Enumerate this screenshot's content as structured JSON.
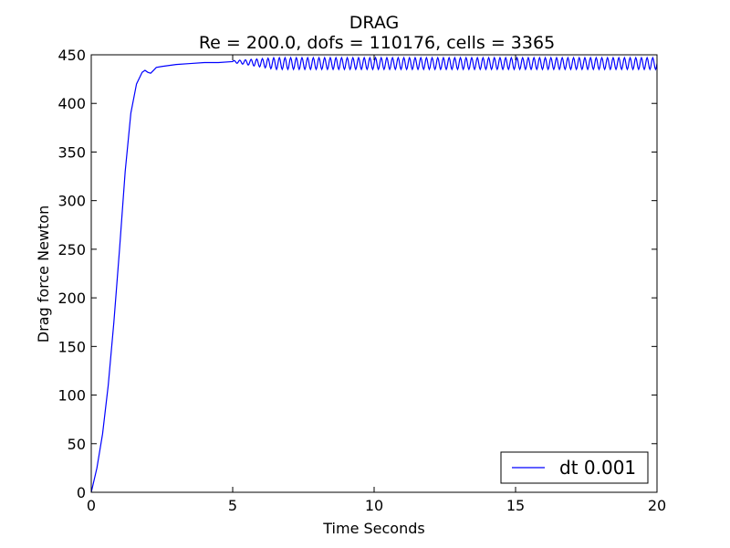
{
  "chart_data": {
    "type": "line",
    "title": "DRAG",
    "subtitle": "Re = 200.0, dofs = 110176, cells = 3365",
    "xlabel": "Time Seconds",
    "ylabel": "Drag force Newton",
    "xlim": [
      0,
      20
    ],
    "ylim": [
      0,
      450
    ],
    "xticks": [
      0,
      5,
      10,
      15,
      20
    ],
    "yticks": [
      0,
      50,
      100,
      150,
      200,
      250,
      300,
      350,
      400,
      450
    ],
    "grid": false,
    "legend_position": "lower-right",
    "series": [
      {
        "name": "dt  0.001",
        "color": "#0000ff",
        "description": "rapid rise to ~433 N by t~1.9 s, small dip, settles near 441-443 N, then periodic oscillation between ~435 and ~447 N from t~5.5 s to 20 s",
        "x": [
          0,
          0.2,
          0.4,
          0.6,
          0.8,
          1.0,
          1.2,
          1.4,
          1.6,
          1.8,
          1.9,
          2.0,
          2.1,
          2.2,
          2.3,
          2.5,
          3.0,
          3.5,
          4.0,
          4.5,
          5.0
        ],
        "y": [
          0,
          25,
          60,
          110,
          175,
          250,
          330,
          390,
          420,
          432,
          434,
          432,
          431,
          434,
          437,
          438,
          440,
          441,
          442,
          442,
          443
        ],
        "oscillation": {
          "start": 5.0,
          "end": 20.0,
          "period": 0.2,
          "mean": 441,
          "amplitude_start": 1,
          "amplitude_full": 6,
          "full_amplitude_at": 6.5
        }
      }
    ]
  }
}
